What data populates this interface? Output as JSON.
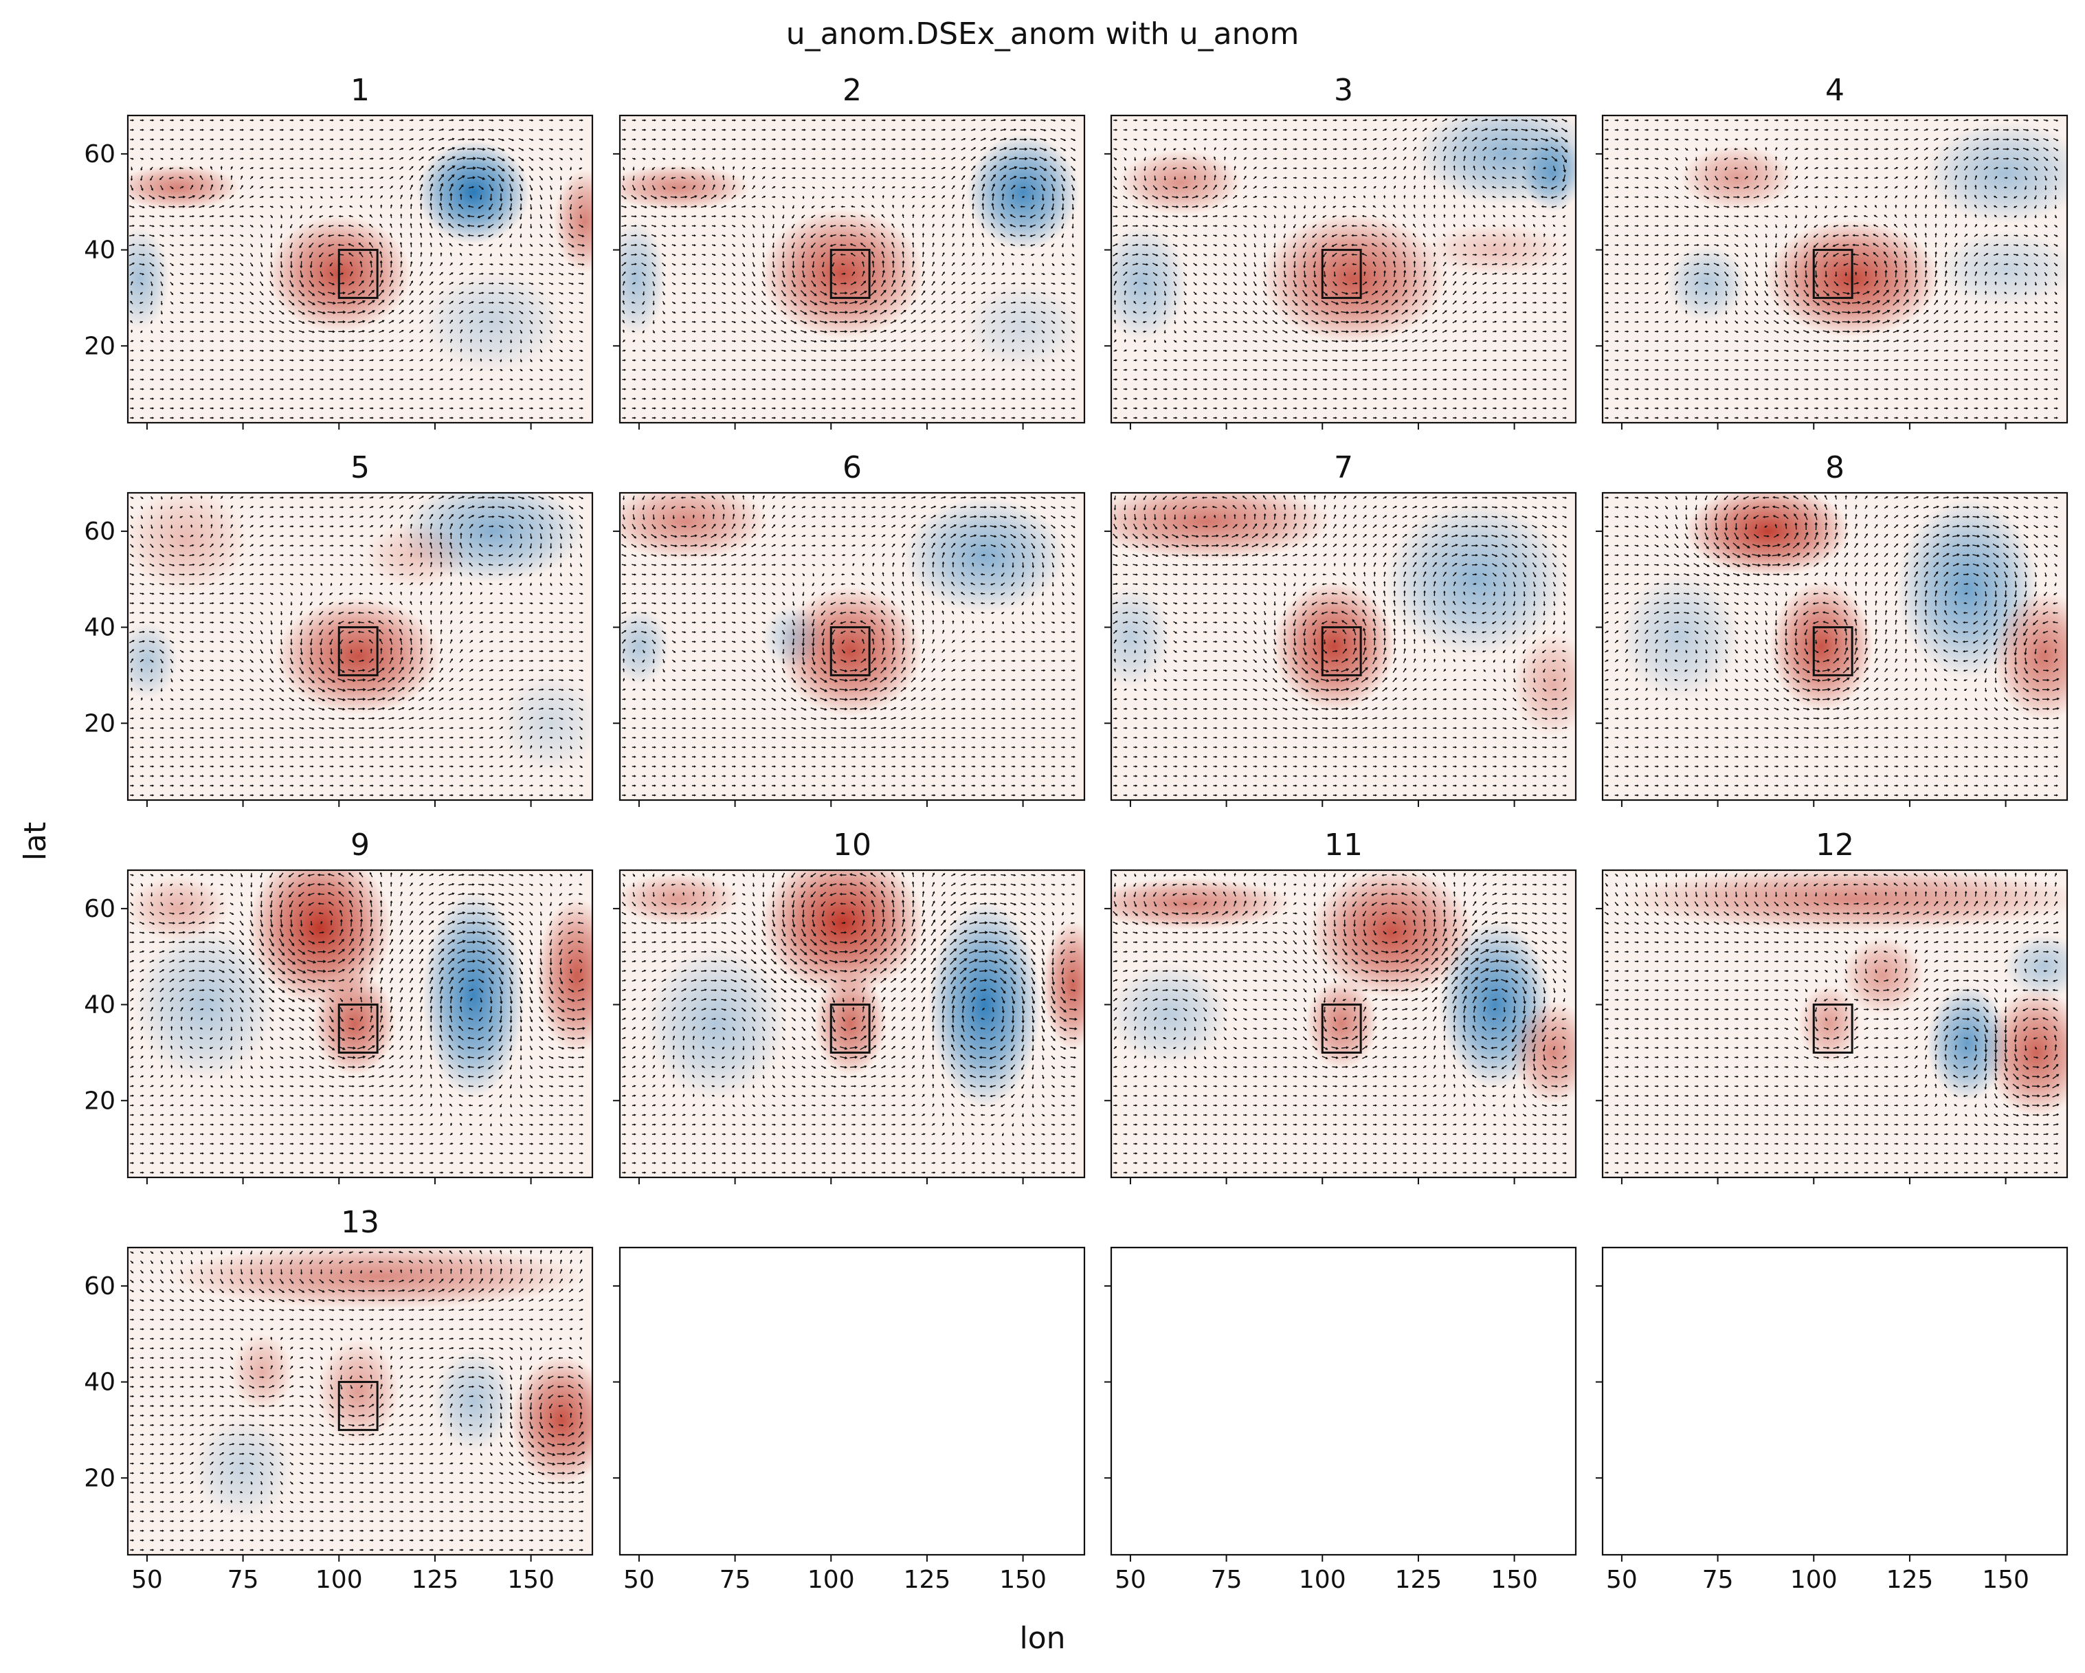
{
  "chart_data": {
    "type": "contourf+quiver (small multiples)",
    "title": "u_anom.DSEx_anom with u_anom",
    "xlabel": "lon",
    "ylabel": "lat",
    "xlim": [
      45,
      166
    ],
    "ylim": [
      4,
      68
    ],
    "xticks": [
      50,
      75,
      100,
      125,
      150
    ],
    "yticks": [
      20,
      40,
      60
    ],
    "colormap": "RdBu_r",
    "colors": {
      "pos": "#c0392b",
      "neg": "#2b7bba",
      "neutral": "#f7f7f7"
    },
    "box": {
      "lon": [
        100,
        110
      ],
      "lat": [
        30,
        40
      ]
    },
    "grid": {
      "rows": 4,
      "cols": 4
    },
    "panels": [
      {
        "title": "1",
        "blobs": [
          {
            "lon": 100,
            "lat": 35,
            "rlon": 14,
            "rlat": 9,
            "a": 0.85
          },
          {
            "lon": 58,
            "lat": 53,
            "rlon": 12,
            "rlat": 3.5,
            "a": 0.6
          },
          {
            "lon": 135,
            "lat": 52,
            "rlon": 11,
            "rlat": 8,
            "a": -1.0
          },
          {
            "lon": 164,
            "lat": 46,
            "rlon": 6,
            "rlat": 8,
            "a": 0.6
          },
          {
            "lon": 48,
            "lat": 34,
            "rlon": 6,
            "rlat": 8,
            "a": -0.4
          },
          {
            "lon": 140,
            "lat": 25,
            "rlon": 14,
            "rlat": 8,
            "a": -0.25
          }
        ]
      },
      {
        "title": "2",
        "blobs": [
          {
            "lon": 103,
            "lat": 35,
            "rlon": 16,
            "rlat": 10,
            "a": 0.85
          },
          {
            "lon": 60,
            "lat": 53,
            "rlon": 14,
            "rlat": 3.5,
            "a": 0.55
          },
          {
            "lon": 150,
            "lat": 52,
            "rlon": 11,
            "rlat": 9,
            "a": -0.85
          },
          {
            "lon": 49,
            "lat": 34,
            "rlon": 6,
            "rlat": 9,
            "a": -0.4
          },
          {
            "lon": 150,
            "lat": 24,
            "rlon": 12,
            "rlat": 7,
            "a": -0.2
          }
        ]
      },
      {
        "title": "3",
        "blobs": [
          {
            "lon": 108,
            "lat": 34,
            "rlon": 18,
            "rlat": 10,
            "a": 0.8
          },
          {
            "lon": 63,
            "lat": 54,
            "rlon": 12,
            "rlat": 5,
            "a": 0.5
          },
          {
            "lon": 148,
            "lat": 60,
            "rlon": 18,
            "rlat": 8,
            "a": -0.5
          },
          {
            "lon": 160,
            "lat": 56,
            "rlon": 6,
            "rlat": 6,
            "a": -0.6
          },
          {
            "lon": 53,
            "lat": 33,
            "rlon": 9,
            "rlat": 9,
            "a": -0.4
          },
          {
            "lon": 145,
            "lat": 40,
            "rlon": 14,
            "rlat": 4,
            "a": 0.25
          }
        ]
      },
      {
        "title": "4",
        "blobs": [
          {
            "lon": 110,
            "lat": 34,
            "rlon": 17,
            "rlat": 9,
            "a": 0.9
          },
          {
            "lon": 80,
            "lat": 55,
            "rlon": 11,
            "rlat": 5,
            "a": 0.45
          },
          {
            "lon": 150,
            "lat": 56,
            "rlon": 16,
            "rlat": 8,
            "a": -0.4
          },
          {
            "lon": 72,
            "lat": 33,
            "rlon": 8,
            "rlat": 6,
            "a": -0.35
          },
          {
            "lon": 150,
            "lat": 36,
            "rlon": 14,
            "rlat": 6,
            "a": -0.25
          }
        ]
      },
      {
        "title": "5",
        "blobs": [
          {
            "lon": 105,
            "lat": 34,
            "rlon": 16,
            "rlat": 9,
            "a": 0.85
          },
          {
            "lon": 60,
            "lat": 58,
            "rlon": 12,
            "rlat": 8,
            "a": 0.3
          },
          {
            "lon": 140,
            "lat": 60,
            "rlon": 18,
            "rlat": 8,
            "a": -0.55
          },
          {
            "lon": 50,
            "lat": 33,
            "rlon": 6,
            "rlat": 6,
            "a": -0.35
          },
          {
            "lon": 120,
            "lat": 55,
            "rlon": 10,
            "rlat": 5,
            "a": 0.25
          },
          {
            "lon": 155,
            "lat": 20,
            "rlon": 10,
            "rlat": 8,
            "a": -0.2
          }
        ]
      },
      {
        "title": "6",
        "blobs": [
          {
            "lon": 105,
            "lat": 35,
            "rlon": 14,
            "rlat": 10,
            "a": 0.85
          },
          {
            "lon": 62,
            "lat": 62,
            "rlon": 16,
            "rlat": 6,
            "a": 0.55
          },
          {
            "lon": 140,
            "lat": 55,
            "rlon": 16,
            "rlat": 9,
            "a": -0.55
          },
          {
            "lon": 90,
            "lat": 38,
            "rlon": 6,
            "rlat": 5,
            "a": -0.3
          },
          {
            "lon": 50,
            "lat": 36,
            "rlon": 6,
            "rlat": 6,
            "a": -0.35
          }
        ]
      },
      {
        "title": "7",
        "blobs": [
          {
            "lon": 103,
            "lat": 36,
            "rlon": 12,
            "rlat": 10,
            "a": 0.9
          },
          {
            "lon": 70,
            "lat": 62,
            "rlon": 24,
            "rlat": 6,
            "a": 0.65
          },
          {
            "lon": 140,
            "lat": 50,
            "rlon": 18,
            "rlat": 12,
            "a": -0.5
          },
          {
            "lon": 160,
            "lat": 28,
            "rlon": 8,
            "rlat": 8,
            "a": 0.35
          },
          {
            "lon": 50,
            "lat": 38,
            "rlon": 8,
            "rlat": 8,
            "a": -0.3
          }
        ]
      },
      {
        "title": "8",
        "blobs": [
          {
            "lon": 102,
            "lat": 36,
            "rlon": 10,
            "rlat": 10,
            "a": 0.85
          },
          {
            "lon": 88,
            "lat": 60,
            "rlon": 16,
            "rlat": 7,
            "a": 0.95
          },
          {
            "lon": 140,
            "lat": 48,
            "rlon": 14,
            "rlat": 14,
            "a": -0.65
          },
          {
            "lon": 160,
            "lat": 34,
            "rlon": 10,
            "rlat": 10,
            "a": 0.65
          },
          {
            "lon": 65,
            "lat": 38,
            "rlon": 12,
            "rlat": 10,
            "a": -0.3
          }
        ]
      },
      {
        "title": "9",
        "blobs": [
          {
            "lon": 95,
            "lat": 56,
            "rlon": 14,
            "rlat": 12,
            "a": 1.0
          },
          {
            "lon": 104,
            "lat": 36,
            "rlon": 8,
            "rlat": 8,
            "a": 0.75
          },
          {
            "lon": 135,
            "lat": 42,
            "rlon": 10,
            "rlat": 16,
            "a": -0.9
          },
          {
            "lon": 162,
            "lat": 46,
            "rlon": 8,
            "rlat": 12,
            "a": 0.8
          },
          {
            "lon": 65,
            "lat": 40,
            "rlon": 14,
            "rlat": 12,
            "a": -0.35
          },
          {
            "lon": 58,
            "lat": 60,
            "rlon": 10,
            "rlat": 5,
            "a": 0.35
          }
        ]
      },
      {
        "title": "10",
        "blobs": [
          {
            "lon": 103,
            "lat": 57,
            "rlon": 16,
            "rlat": 11,
            "a": 1.0
          },
          {
            "lon": 105,
            "lat": 36,
            "rlon": 7,
            "rlat": 8,
            "a": 0.7
          },
          {
            "lon": 140,
            "lat": 40,
            "rlon": 11,
            "rlat": 16,
            "a": -0.95
          },
          {
            "lon": 163,
            "lat": 44,
            "rlon": 6,
            "rlat": 10,
            "a": 0.75
          },
          {
            "lon": 60,
            "lat": 62,
            "rlon": 12,
            "rlat": 4,
            "a": 0.45
          },
          {
            "lon": 70,
            "lat": 36,
            "rlon": 14,
            "rlat": 12,
            "a": -0.35
          }
        ]
      },
      {
        "title": "11",
        "blobs": [
          {
            "lon": 118,
            "lat": 55,
            "rlon": 16,
            "rlat": 10,
            "a": 0.85
          },
          {
            "lon": 65,
            "lat": 61,
            "rlon": 20,
            "rlat": 4,
            "a": 0.6
          },
          {
            "lon": 145,
            "lat": 40,
            "rlon": 11,
            "rlat": 13,
            "a": -0.85
          },
          {
            "lon": 105,
            "lat": 36,
            "rlon": 7,
            "rlat": 7,
            "a": 0.6
          },
          {
            "lon": 160,
            "lat": 30,
            "rlon": 8,
            "rlat": 8,
            "a": 0.55
          },
          {
            "lon": 60,
            "lat": 38,
            "rlon": 12,
            "rlat": 8,
            "a": -0.3
          }
        ]
      },
      {
        "title": "12",
        "blobs": [
          {
            "lon": 110,
            "lat": 62,
            "rlon": 45,
            "rlat": 5,
            "a": 0.55
          },
          {
            "lon": 158,
            "lat": 30,
            "rlon": 10,
            "rlat": 10,
            "a": 0.75
          },
          {
            "lon": 140,
            "lat": 32,
            "rlon": 8,
            "rlat": 9,
            "a": -0.7
          },
          {
            "lon": 118,
            "lat": 46,
            "rlon": 8,
            "rlat": 6,
            "a": 0.45
          },
          {
            "lon": 104,
            "lat": 36,
            "rlon": 6,
            "rlat": 6,
            "a": 0.45
          },
          {
            "lon": 160,
            "lat": 48,
            "rlon": 8,
            "rlat": 5,
            "a": -0.35
          }
        ]
      },
      {
        "title": "13",
        "blobs": [
          {
            "lon": 110,
            "lat": 62,
            "rlon": 40,
            "rlat": 5,
            "a": 0.55
          },
          {
            "lon": 158,
            "lat": 32,
            "rlon": 10,
            "rlat": 10,
            "a": 0.85
          },
          {
            "lon": 105,
            "lat": 38,
            "rlon": 8,
            "rlat": 8,
            "a": 0.45
          },
          {
            "lon": 80,
            "lat": 42,
            "rlon": 6,
            "rlat": 6,
            "a": 0.35
          },
          {
            "lon": 135,
            "lat": 36,
            "rlon": 8,
            "rlat": 8,
            "a": -0.35
          },
          {
            "lon": 75,
            "lat": 22,
            "rlon": 10,
            "rlat": 8,
            "a": -0.25
          }
        ]
      },
      {
        "title": "",
        "blobs": []
      },
      {
        "title": "",
        "blobs": []
      },
      {
        "title": "",
        "blobs": []
      }
    ]
  }
}
